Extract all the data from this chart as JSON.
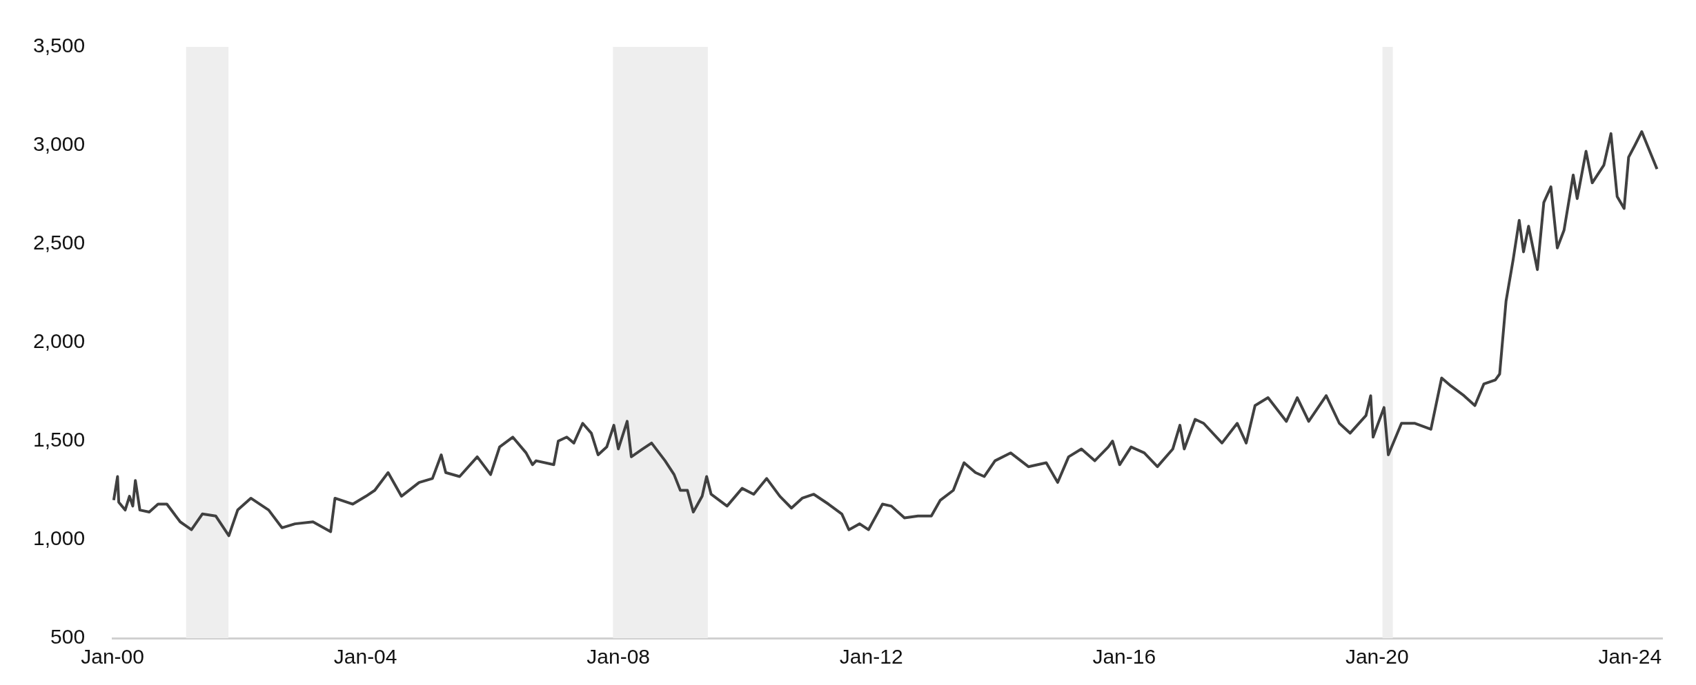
{
  "chart_data": {
    "type": "line",
    "xlim": [
      "2000-01",
      "2024-07"
    ],
    "xticks": [
      {
        "value": "2000-01",
        "label": "Jan-00"
      },
      {
        "value": "2004-01",
        "label": "Jan-04"
      },
      {
        "value": "2008-01",
        "label": "Jan-08"
      },
      {
        "value": "2012-01",
        "label": "Jan-12"
      },
      {
        "value": "2016-01",
        "label": "Jan-16"
      },
      {
        "value": "2020-01",
        "label": "Jan-20"
      },
      {
        "value": "2024-01",
        "label": "Jan-24"
      }
    ],
    "ylim": [
      500,
      3500
    ],
    "yticks": [
      500,
      {
        "value": 1000,
        "label": "1,000"
      },
      {
        "value": 1500,
        "label": "1,500"
      },
      {
        "value": 2000,
        "label": "2,000"
      },
      {
        "value": 2500,
        "label": "2,500"
      },
      {
        "value": 3000,
        "label": "3,000"
      },
      {
        "value": 3500,
        "label": "3,500"
      }
    ],
    "grid": false,
    "legend": false,
    "marker": "none",
    "line_style": "solid",
    "bands": [
      {
        "axis": "x",
        "from": "2001-03",
        "to": "2001-11",
        "color": "#eeeeee"
      },
      {
        "axis": "x",
        "from": "2007-12",
        "to": "2009-06",
        "color": "#eeeeee"
      },
      {
        "axis": "x",
        "from": "2020-02",
        "to": "2020-04",
        "color": "#eeeeee"
      }
    ],
    "series": [
      {
        "color": "#404040",
        "x": [
          "2000-01-08",
          "2000-01-30",
          "2000-02-06",
          "2000-03-14",
          "2000-04-08",
          "2000-04-27",
          "2000-05-12",
          "2000-06-07",
          "2000-07-31",
          "2000-09-20",
          "2000-11-10",
          "2001-01-26",
          "2001-04-01",
          "2001-06-03",
          "2001-08-19",
          "2001-11-03",
          "2001-12-24",
          "2002-03-10",
          "2002-06-21",
          "2002-09-06",
          "2002-11-20",
          "2003-03-04",
          "2003-06-14",
          "2003-07-09",
          "2003-10-20",
          "2004-01-04",
          "2004-02-24",
          "2004-05-11",
          "2004-07-27",
          "2004-11-06",
          "2005-01-22",
          "2005-03-14",
          "2005-04-09",
          "2005-06-28",
          "2005-10-08",
          "2005-12-24",
          "2006-02-14",
          "2006-05-01",
          "2006-07-17",
          "2006-08-23",
          "2006-09-13",
          "2006-12-24",
          "2007-01-19",
          "2007-03-09",
          "2007-04-19",
          "2007-06-09",
          "2007-07-29",
          "2007-09-06",
          "2007-10-26",
          "2007-12-06",
          "2008-01-01",
          "2008-02-21",
          "2008-03-16",
          "2008-05-21",
          "2008-07-11",
          "2008-09-27",
          "2008-11-18",
          "2008-12-24",
          "2009-02-03",
          "2009-03-09",
          "2009-04-29",
          "2009-05-25",
          "2009-06-20",
          "2009-09-20",
          "2009-12-16",
          "2010-02-21",
          "2010-05-07",
          "2010-07-22",
          "2010-09-27",
          "2010-11-28",
          "2011-02-03",
          "2011-04-29",
          "2011-07-15",
          "2011-08-25",
          "2011-10-26",
          "2011-12-16",
          "2012-03-06",
          "2012-04-26",
          "2012-07-11",
          "2012-09-27",
          "2012-12-13",
          "2013-02-03",
          "2013-04-19",
          "2013-06-20",
          "2013-08-25",
          "2013-10-15",
          "2013-12-16",
          "2014-03-16",
          "2014-06-27",
          "2014-10-08",
          "2014-12-13",
          "2015-02-14",
          "2015-04-29",
          "2015-07-15",
          "2015-10-01",
          "2015-10-26",
          "2015-12-06",
          "2016-02-10",
          "2016-04-26",
          "2016-07-11",
          "2016-10-08",
          "2016-11-18",
          "2016-12-13",
          "2017-02-14",
          "2017-04-04",
          "2017-07-19",
          "2017-10-15",
          "2017-12-06",
          "2018-01-26",
          "2018-04-11",
          "2018-07-26",
          "2018-09-27",
          "2018-12-02",
          "2019-03-13",
          "2019-05-28",
          "2019-07-29",
          "2019-10-29",
          "2019-11-25",
          "2019-12-09",
          "2020-02-10",
          "2020-03-06",
          "2020-05-21",
          "2020-08-07",
          "2020-11-07",
          "2021-01-08",
          "2021-03-02",
          "2021-05-17",
          "2021-07-19",
          "2021-09-09",
          "2021-11-14",
          "2021-12-09",
          "2022-01-15",
          "2022-02-25",
          "2022-04-01",
          "2022-04-26",
          "2022-05-25",
          "2022-07-15",
          "2022-08-21",
          "2022-10-01",
          "2022-11-07",
          "2022-12-16",
          "2023-02-07",
          "2023-03-02",
          "2023-04-22",
          "2023-05-28",
          "2023-08-03",
          "2023-09-13",
          "2023-10-19",
          "2023-11-28",
          "2023-12-24",
          "2024-01-29",
          "2024-03-09",
          "2024-04-29",
          "2024-06-05"
        ],
        "values": [
          1200,
          1320,
          1190,
          1150,
          1220,
          1170,
          1300,
          1150,
          1140,
          1180,
          1180,
          1090,
          1050,
          1130,
          1120,
          1020,
          1150,
          1210,
          1150,
          1060,
          1080,
          1090,
          1040,
          1210,
          1180,
          1220,
          1250,
          1340,
          1220,
          1290,
          1310,
          1430,
          1340,
          1320,
          1420,
          1330,
          1470,
          1520,
          1440,
          1380,
          1400,
          1380,
          1500,
          1520,
          1490,
          1590,
          1540,
          1430,
          1470,
          1580,
          1460,
          1600,
          1420,
          1460,
          1490,
          1400,
          1330,
          1250,
          1250,
          1140,
          1220,
          1320,
          1230,
          1170,
          1260,
          1230,
          1310,
          1220,
          1160,
          1210,
          1230,
          1180,
          1130,
          1050,
          1080,
          1050,
          1180,
          1170,
          1110,
          1120,
          1120,
          1200,
          1250,
          1390,
          1340,
          1320,
          1400,
          1440,
          1370,
          1390,
          1290,
          1420,
          1460,
          1400,
          1470,
          1500,
          1380,
          1470,
          1440,
          1370,
          1460,
          1580,
          1460,
          1610,
          1590,
          1490,
          1590,
          1490,
          1680,
          1720,
          1600,
          1720,
          1600,
          1730,
          1590,
          1540,
          1630,
          1730,
          1520,
          1670,
          1430,
          1590,
          1590,
          1560,
          1820,
          1780,
          1730,
          1680,
          1790,
          1810,
          1840,
          2210,
          2420,
          2620,
          2460,
          2590,
          2370,
          2710,
          2790,
          2480,
          2570,
          2850,
          2730,
          2970,
          2810,
          2900,
          3060,
          2740,
          2680,
          2940,
          3000,
          3070,
          2960,
          2880
        ]
      }
    ]
  }
}
